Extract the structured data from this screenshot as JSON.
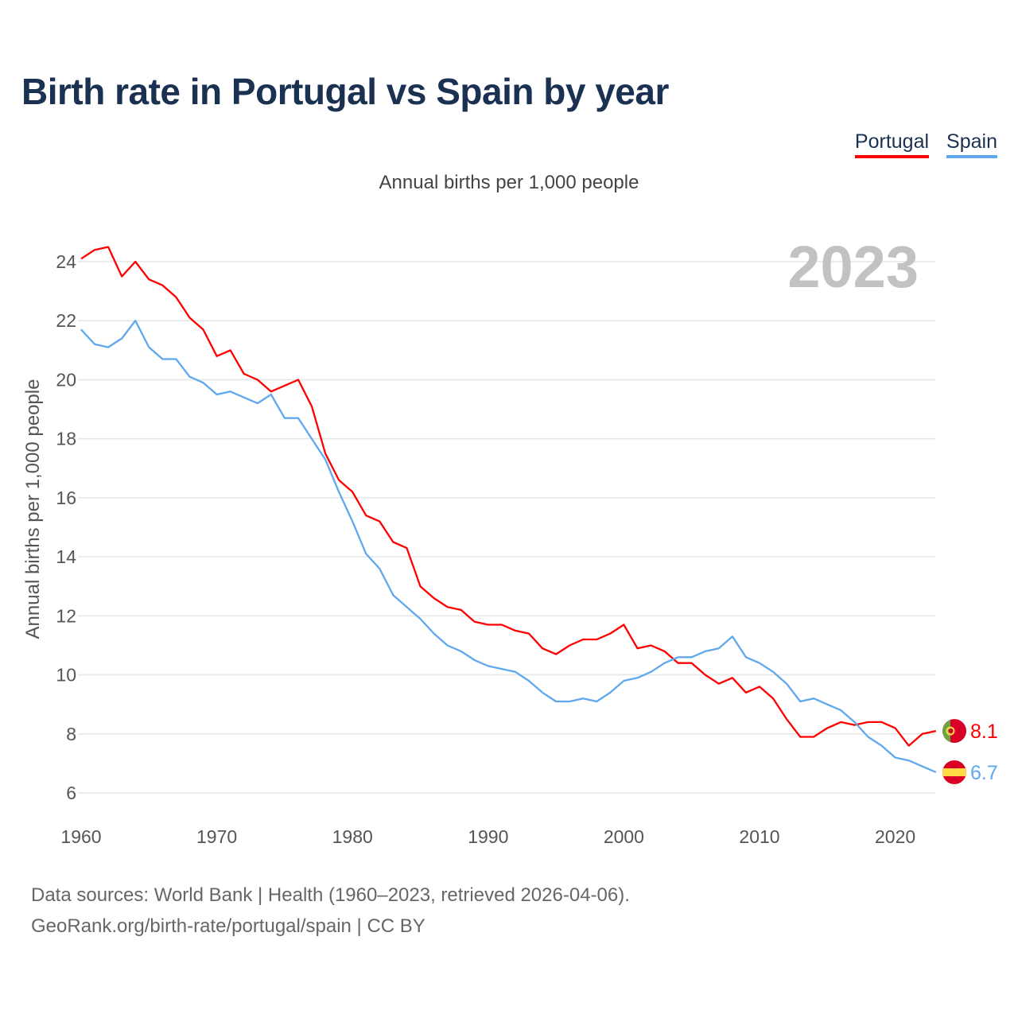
{
  "title": "Birth rate in Portugal vs Spain by year",
  "legend": [
    {
      "label": "Portugal",
      "color": "#ff0000"
    },
    {
      "label": "Spain",
      "color": "#5fa8ee"
    }
  ],
  "footer": {
    "line1": "Data sources: World Bank | Health (1960–2023, retrieved 2026-04-06).",
    "line2": "GeoRank.org/birth-rate/portugal/spain | CC BY"
  },
  "chart_data": {
    "type": "line",
    "title": "Birth rate in Portugal vs Spain by year",
    "subtitle": "Annual births per 1,000 people",
    "xlabel": "",
    "ylabel": "Annual births per 1,000 people",
    "year_label": "2023",
    "xlim": [
      1960,
      2023
    ],
    "ylim": [
      6,
      24
    ],
    "x_ticks": [
      1960,
      1970,
      1980,
      1990,
      2000,
      2010,
      2020
    ],
    "y_ticks": [
      6,
      8,
      10,
      12,
      14,
      16,
      18,
      20,
      22,
      24
    ],
    "grid": true,
    "legend_position": "top-right",
    "x": [
      1960,
      1961,
      1962,
      1963,
      1964,
      1965,
      1966,
      1967,
      1968,
      1969,
      1970,
      1971,
      1972,
      1973,
      1974,
      1975,
      1976,
      1977,
      1978,
      1979,
      1980,
      1981,
      1982,
      1983,
      1984,
      1985,
      1986,
      1987,
      1988,
      1989,
      1990,
      1991,
      1992,
      1993,
      1994,
      1995,
      1996,
      1997,
      1998,
      1999,
      2000,
      2001,
      2002,
      2003,
      2004,
      2005,
      2006,
      2007,
      2008,
      2009,
      2010,
      2011,
      2012,
      2013,
      2014,
      2015,
      2016,
      2017,
      2018,
      2019,
      2020,
      2021,
      2022,
      2023
    ],
    "series": [
      {
        "name": "Portugal",
        "color": "#ff0000",
        "end_label": "8.1",
        "flag": "portugal-flag",
        "values": [
          24.1,
          24.4,
          24.5,
          23.5,
          24.0,
          23.4,
          23.2,
          22.8,
          22.1,
          21.7,
          20.8,
          21.0,
          20.2,
          20.0,
          19.6,
          19.8,
          20.0,
          19.1,
          17.5,
          16.6,
          16.2,
          15.4,
          15.2,
          14.5,
          14.3,
          13.0,
          12.6,
          12.3,
          12.2,
          11.8,
          11.7,
          11.7,
          11.5,
          11.4,
          10.9,
          10.7,
          11.0,
          11.2,
          11.2,
          11.4,
          11.7,
          10.9,
          11.0,
          10.8,
          10.4,
          10.4,
          10.0,
          9.7,
          9.9,
          9.4,
          9.6,
          9.2,
          8.5,
          7.9,
          7.9,
          8.2,
          8.4,
          8.3,
          8.4,
          8.4,
          8.2,
          7.6,
          8.0,
          8.1
        ]
      },
      {
        "name": "Spain",
        "color": "#5fa8ee",
        "end_label": "6.7",
        "flag": "spain-flag",
        "values": [
          21.7,
          21.2,
          21.1,
          21.4,
          22.0,
          21.1,
          20.7,
          20.7,
          20.1,
          19.9,
          19.5,
          19.6,
          19.4,
          19.2,
          19.5,
          18.7,
          18.7,
          18.0,
          17.3,
          16.2,
          15.2,
          14.1,
          13.6,
          12.7,
          12.3,
          11.9,
          11.4,
          11.0,
          10.8,
          10.5,
          10.3,
          10.2,
          10.1,
          9.8,
          9.4,
          9.1,
          9.1,
          9.2,
          9.1,
          9.4,
          9.8,
          9.9,
          10.1,
          10.4,
          10.6,
          10.6,
          10.8,
          10.9,
          11.3,
          10.6,
          10.4,
          10.1,
          9.7,
          9.1,
          9.2,
          9.0,
          8.8,
          8.4,
          7.9,
          7.6,
          7.2,
          7.1,
          6.9,
          6.7
        ]
      }
    ]
  }
}
